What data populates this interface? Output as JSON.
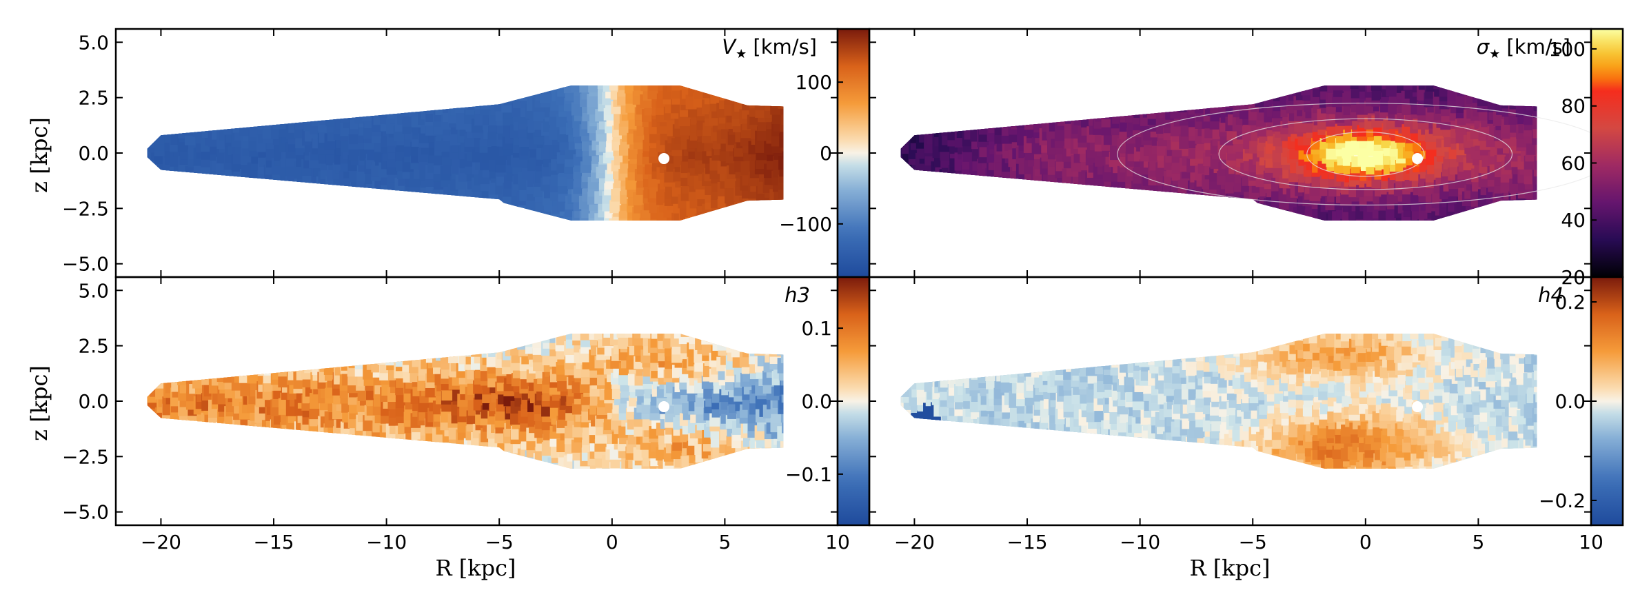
{
  "figure": {
    "xlabel": "R [kpc]",
    "ylabel": "z [kpc]"
  },
  "chart_data": [
    {
      "type": "heatmap",
      "panel": "top-left",
      "label_symbol": "V",
      "label_subscript": "★",
      "label_unit": "[km/s]",
      "colormap": "diverging-blue-orange",
      "xlim": [
        -22,
        10
      ],
      "ylim": [
        -5.6,
        5.6
      ],
      "xticks": [
        "−20",
        "−15",
        "−10",
        "−5",
        "0",
        "5",
        "10"
      ],
      "yticks": [
        "5.0",
        "2.5",
        "0.0",
        "−2.5",
        "−5.0"
      ],
      "x_tick_labels_shown": false,
      "colorbar": {
        "range": [
          -175,
          175
        ],
        "ticks": [
          "100",
          "0",
          "−100"
        ],
        "tick_values": [
          100,
          0,
          -100
        ]
      },
      "data_extent_R": [
        -20.5,
        7.6
      ],
      "peak_values": [
        {
          "R": -17,
          "z": 0,
          "v": -140
        },
        {
          "R": 0.6,
          "z": 0,
          "v": 120
        },
        {
          "R": 7.5,
          "z": 0,
          "v": 175
        }
      ]
    },
    {
      "type": "heatmap",
      "panel": "top-right",
      "label_symbol": "σ",
      "label_subscript": "★",
      "label_unit": "[km/s]",
      "colormap": "inferno",
      "xlim": [
        -22,
        10
      ],
      "ylim": [
        -5.6,
        5.6
      ],
      "xticks": [
        "−20",
        "−15",
        "−10",
        "−5",
        "0",
        "5",
        "10"
      ],
      "yticks": [],
      "x_tick_labels_shown": false,
      "colorbar": {
        "range": [
          20,
          107
        ],
        "ticks": [
          "100",
          "80",
          "60",
          "40",
          "20"
        ],
        "tick_values": [
          100,
          80,
          60,
          40,
          20
        ]
      },
      "data_extent_R": [
        -20.5,
        7.6
      ],
      "peak_values": [
        {
          "R": 0,
          "z": 0,
          "v": 105
        },
        {
          "R": -19,
          "z": 0,
          "v": 22
        }
      ]
    },
    {
      "type": "heatmap",
      "panel": "bottom-left",
      "label_symbol": "h",
      "label_subscript": "3",
      "label_unit": "",
      "colormap": "diverging-blue-orange",
      "xlim": [
        -22,
        10
      ],
      "ylim": [
        -5.6,
        5.6
      ],
      "xticks": [
        "−20",
        "−15",
        "−10",
        "−5",
        "0",
        "5",
        "10"
      ],
      "yticks": [
        "5.0",
        "2.5",
        "0.0",
        "−2.5",
        "−5.0"
      ],
      "x_tick_labels_shown": true,
      "colorbar": {
        "range": [
          -0.17,
          0.17
        ],
        "ticks": [
          "0.1",
          "0.0",
          "−0.1"
        ],
        "tick_values": [
          0.1,
          0.0,
          -0.1
        ]
      },
      "data_extent_R": [
        -20.5,
        7.6
      ]
    },
    {
      "type": "heatmap",
      "panel": "bottom-right",
      "label_symbol": "h",
      "label_subscript": "4",
      "label_unit": "",
      "colormap": "diverging-blue-orange",
      "xlim": [
        -22,
        10
      ],
      "ylim": [
        -5.6,
        5.6
      ],
      "xticks": [
        "−20",
        "−15",
        "−10",
        "−5",
        "0",
        "5",
        "10"
      ],
      "yticks": [],
      "x_tick_labels_shown": true,
      "colorbar": {
        "range": [
          -0.25,
          0.25
        ],
        "ticks": [
          "0.2",
          "0.0",
          "−0.2"
        ],
        "tick_values": [
          0.2,
          0.0,
          -0.2
        ]
      },
      "data_extent_R": [
        -20.5,
        7.6
      ]
    }
  ]
}
